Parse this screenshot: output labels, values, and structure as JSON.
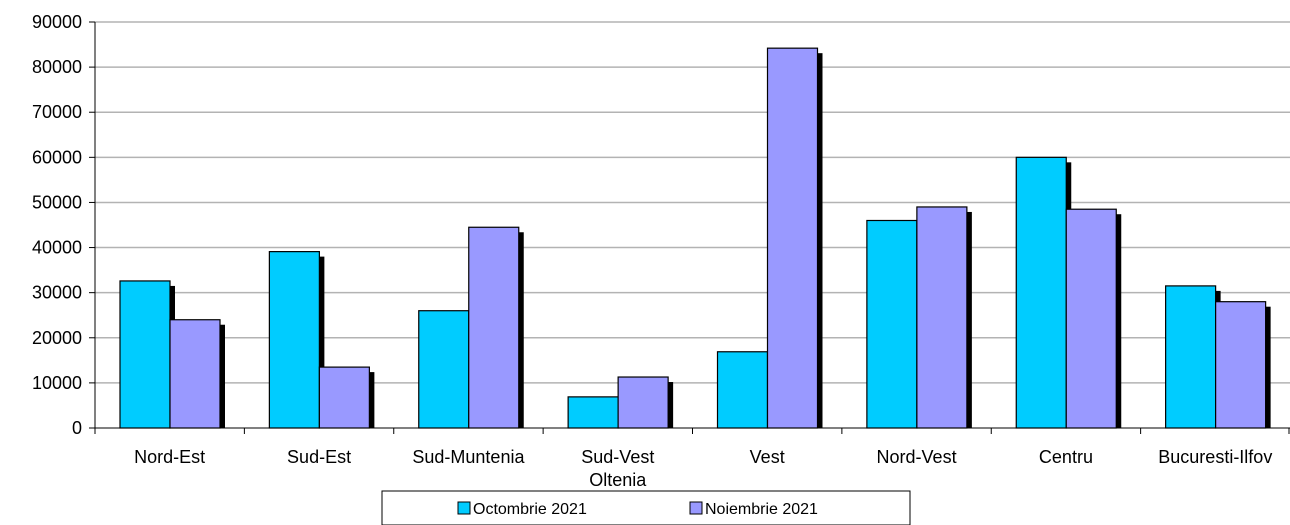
{
  "chart_data": {
    "type": "bar",
    "categories": [
      [
        "Nord-Est"
      ],
      [
        "Sud-Est"
      ],
      [
        "Sud-Muntenia"
      ],
      [
        "Sud-Vest",
        "Oltenia"
      ],
      [
        "Vest"
      ],
      [
        "Nord-Vest"
      ],
      [
        "Centru"
      ],
      [
        "Bucuresti-Ilfov"
      ]
    ],
    "series": [
      {
        "name": "Octombrie 2021",
        "color": "#00ccff",
        "values": [
          32600,
          39100,
          26000,
          6900,
          16900,
          46000,
          60000,
          31500
        ]
      },
      {
        "name": "Noiembrie 2021",
        "color": "#9999ff",
        "values": [
          24000,
          13500,
          44500,
          11300,
          84200,
          49000,
          48500,
          28000
        ]
      }
    ],
    "ylim": [
      0,
      90000
    ],
    "yticks": [
      0,
      10000,
      20000,
      30000,
      40000,
      50000,
      60000,
      70000,
      80000,
      90000
    ],
    "grid": true,
    "legend_position": "bottom",
    "title": "",
    "xlabel": "",
    "ylabel": ""
  }
}
